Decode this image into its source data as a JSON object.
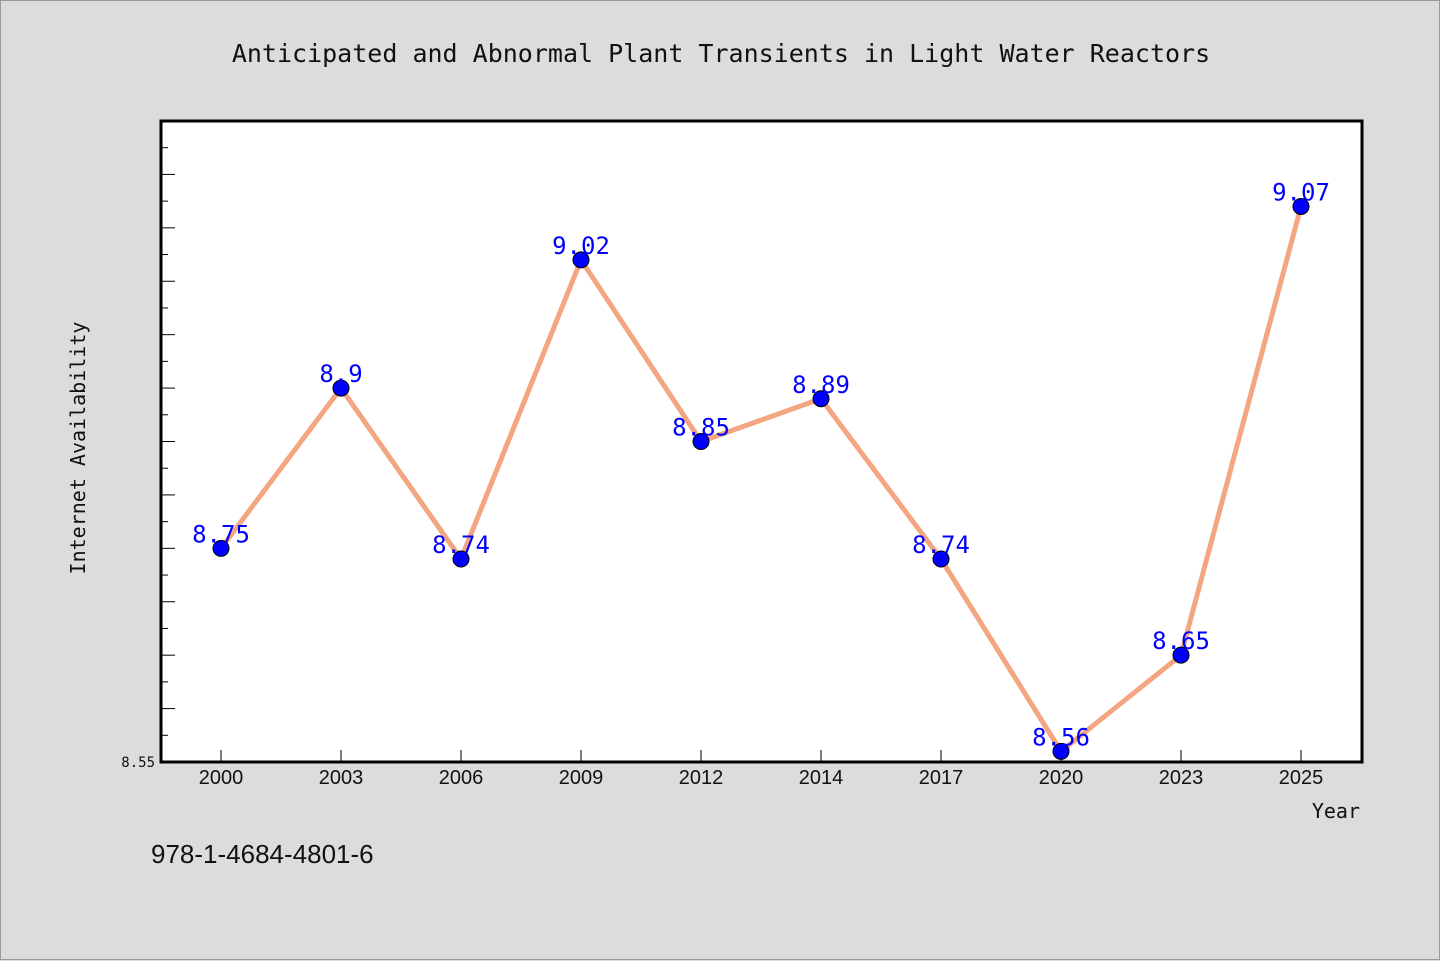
{
  "footer": {
    "isbn": "978-1-4684-4801-6"
  },
  "colors": {
    "line": "#f4a582",
    "marker": "#0000ff",
    "label": "#0000ff",
    "background": "#dcdcdc",
    "plot_background": "#ffffff"
  },
  "chart_data": {
    "type": "line",
    "title": "Anticipated and Abnormal Plant Transients in Light Water Reactors",
    "xlabel": "Year",
    "ylabel": "Internet Availability",
    "categories": [
      "2000",
      "2003",
      "2006",
      "2009",
      "2012",
      "2014",
      "2017",
      "2020",
      "2023",
      "2025"
    ],
    "series": [
      {
        "values": [
          8.75,
          8.9,
          8.74,
          9.02,
          8.85,
          8.89,
          8.74,
          8.56,
          8.65,
          9.07
        ]
      }
    ],
    "data_labels": [
      "8.75",
      "8.9",
      "8.74",
      "9.02",
      "8.85",
      "8.89",
      "8.74",
      "8.56",
      "8.65",
      "9.07"
    ],
    "ylim": [
      8.55,
      9.15
    ],
    "y_tick_labels": [
      "8.55"
    ],
    "grid": false,
    "legend": "none"
  }
}
